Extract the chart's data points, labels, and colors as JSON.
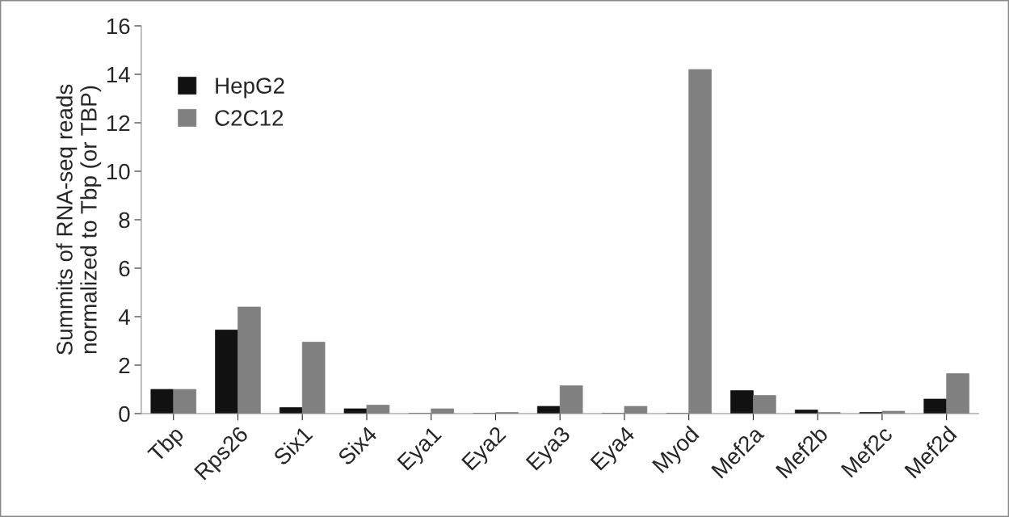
{
  "chart_data": {
    "type": "bar",
    "ylabel": "Summits of RNA-seq reads\nnormalized to Tbp (or TBP)",
    "categories": [
      "Tbp",
      "Rps26",
      "Six1",
      "Six4",
      "Eya1",
      "Eya2",
      "Eya3",
      "Eya4",
      "Myod",
      "Mef2a",
      "Mef2b",
      "Mef2c",
      "Mef2d"
    ],
    "series": [
      {
        "name": "HepG2",
        "color": "#111111",
        "values": [
          1.0,
          3.45,
          0.25,
          0.2,
          0,
          0,
          0.3,
          0,
          0,
          0.95,
          0.15,
          0.05,
          0.6
        ]
      },
      {
        "name": "C2C12",
        "color": "#808080",
        "values": [
          1.0,
          4.4,
          2.95,
          0.35,
          0.2,
          0.05,
          1.15,
          0.3,
          14.2,
          0.75,
          0.05,
          0.1,
          1.65
        ]
      }
    ],
    "ylim": [
      0,
      16
    ],
    "yticks": [
      0,
      2,
      4,
      6,
      8,
      10,
      12,
      14,
      16
    ],
    "grid": false,
    "legend": "top left"
  }
}
